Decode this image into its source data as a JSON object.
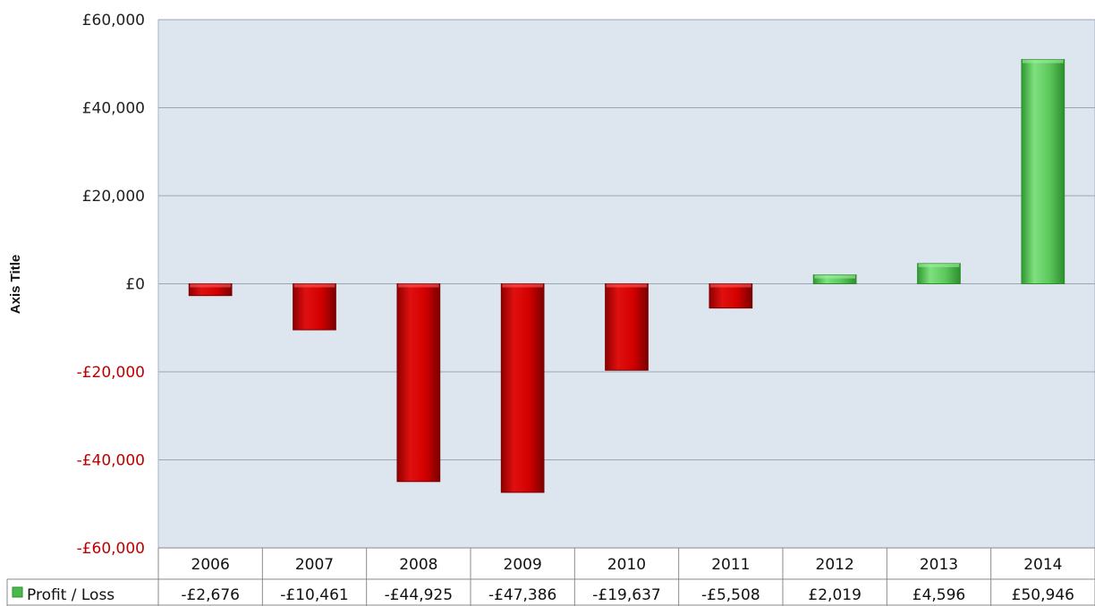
{
  "chart_data": {
    "type": "bar",
    "ylabel": "Axis Title",
    "categories": [
      "2006",
      "2007",
      "2008",
      "2009",
      "2010",
      "2011",
      "2012",
      "2013",
      "2014"
    ],
    "series": [
      {
        "name": "Profit / Loss",
        "values": [
          -2676,
          -10461,
          -44925,
          -47386,
          -19637,
          -5508,
          2019,
          4596,
          50946
        ],
        "value_labels": [
          "-£2,676",
          "-£10,461",
          "-£44,925",
          "-£47,386",
          "-£19,637",
          "-£5,508",
          "£2,019",
          "£4,596",
          "£50,946"
        ]
      }
    ],
    "ylim": [
      -60000,
      60000
    ],
    "yticks": [
      60000,
      40000,
      20000,
      0,
      -20000,
      -40000,
      -60000
    ],
    "ytick_labels": [
      "£60,000",
      "£40,000",
      "£20,000",
      "£0",
      "-£20,000",
      "-£40,000",
      "-£60,000"
    ],
    "grid": true,
    "legend": "data-table-left",
    "colors": {
      "positive_bar": "#5cc85c",
      "negative_bar": "#d40000",
      "plot_background": "#dde5ef",
      "gridline": "#9aa6b4",
      "negative_tick_label": "#c00000",
      "positive_tick_label": "#222222",
      "table_border": "#8a8a8a",
      "legend_key": "#4cb84c"
    }
  }
}
